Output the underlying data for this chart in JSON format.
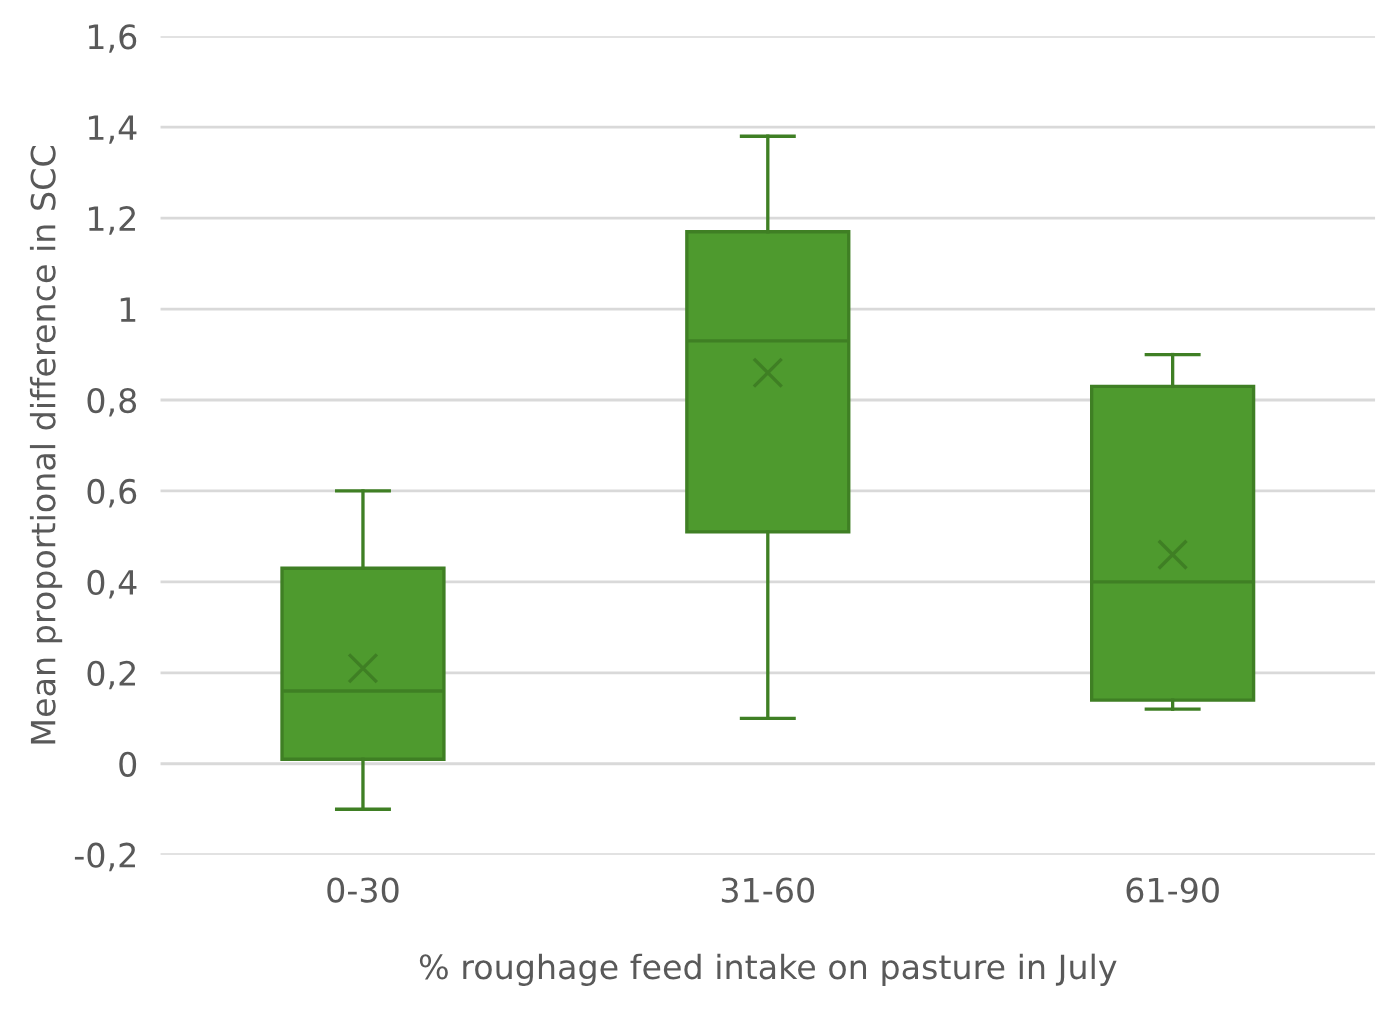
{
  "chart_data": {
    "type": "box",
    "categories": [
      "0-30",
      "31-60",
      "61-90"
    ],
    "xlabel": "% roughage feed intake on pasture in July",
    "ylabel": "Mean proportional difference in SCC",
    "ylim": [
      -0.2,
      1.6
    ],
    "yticks": [
      {
        "value": -0.2,
        "label": "-0,2"
      },
      0,
      {
        "value": 0.2,
        "label": "0,2"
      },
      {
        "value": 0.4,
        "label": "0,4"
      },
      {
        "value": 0.6,
        "label": "0,6"
      },
      {
        "value": 0.8,
        "label": "0,8"
      },
      1,
      {
        "value": 1.2,
        "label": "1,2"
      },
      {
        "value": 1.4,
        "label": "1,4"
      },
      {
        "value": 1.6,
        "label": "1,6"
      }
    ],
    "grid": "y",
    "marker": "cross",
    "series": [
      {
        "color": "#4e9a2e",
        "boxes": [
          {
            "low": -0.1,
            "q1": 0.01,
            "median": 0.16,
            "q3": 0.43,
            "high": 0.6,
            "mean": 0.21
          },
          {
            "low": 0.1,
            "q1": 0.51,
            "median": 0.93,
            "q3": 1.17,
            "high": 1.38,
            "mean": 0.86
          },
          {
            "low": 0.12,
            "q1": 0.14,
            "median": 0.4,
            "q3": 0.83,
            "high": 0.9,
            "mean": 0.46
          }
        ]
      }
    ]
  }
}
